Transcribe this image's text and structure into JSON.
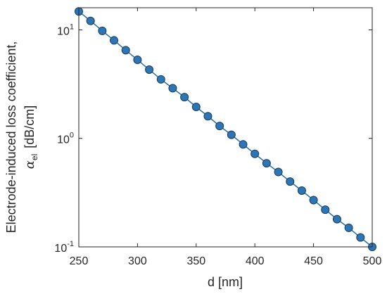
{
  "chart_data": {
    "type": "line",
    "xlabel": "d  [nm]",
    "ylabel_line1": "Electrode-induced loss coefficient,",
    "ylabel_symbol": "α",
    "ylabel_subscript": "el",
    "ylabel_unit": "[dB/cm]",
    "xlim": [
      250,
      500
    ],
    "ylim": [
      0.1,
      16
    ],
    "y_scale": "log",
    "grid": false,
    "x_ticks": [
      250,
      300,
      350,
      400,
      450,
      500
    ],
    "x_tick_labels": [
      "250",
      "300",
      "350",
      "400",
      "450",
      "500"
    ],
    "y_ticks": [
      {
        "value": 10,
        "base": "10",
        "exp": "1"
      },
      {
        "value": 1,
        "base": "10",
        "exp": "0"
      },
      {
        "value": 0.1,
        "base": "10",
        "exp": "-1"
      }
    ],
    "line_color": "#1f6fb0",
    "marker_fill": "#2e75b6",
    "marker_edge": "#1a3d5c",
    "series": [
      {
        "x": [
          250,
          260,
          270,
          280,
          290,
          300,
          310,
          320,
          330,
          340,
          350,
          360,
          370,
          380,
          390,
          400,
          410,
          420,
          430,
          440,
          450,
          460,
          470,
          480,
          490,
          500
        ],
        "y": [
          14.8,
          12.1,
          9.8,
          8.0,
          6.5,
          5.3,
          4.3,
          3.5,
          2.9,
          2.4,
          1.95,
          1.6,
          1.3,
          1.08,
          0.88,
          0.72,
          0.59,
          0.49,
          0.4,
          0.33,
          0.27,
          0.22,
          0.18,
          0.15,
          0.122,
          0.1
        ]
      }
    ]
  }
}
